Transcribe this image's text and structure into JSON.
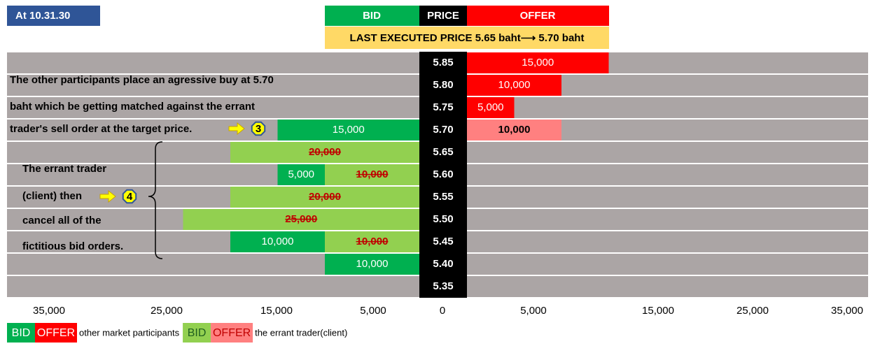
{
  "header": {
    "time": "At 10.31.30",
    "bid": "BID",
    "price": "PRICE",
    "offer": "OFFER",
    "last_price": "LAST EXECUTED PRICE 5.65 baht⟶ 5.70 baht"
  },
  "rows": [
    {
      "price": "5.85",
      "bid": [],
      "offer": [
        {
          "value": 15000,
          "label": "15,000",
          "color": "#ff0000"
        }
      ]
    },
    {
      "price": "5.80",
      "bid": [],
      "offer": [
        {
          "value": 10000,
          "label": "10,000",
          "color": "#ff0000"
        }
      ]
    },
    {
      "price": "5.75",
      "bid": [],
      "offer": [
        {
          "value": 5000,
          "label": "5,000",
          "color": "#ff0000"
        }
      ]
    },
    {
      "price": "5.70",
      "bid": [
        {
          "value": 15000,
          "label": "15,000",
          "color": "#00b050"
        }
      ],
      "offer": [
        {
          "value": 10000,
          "label": "10,000",
          "color": "#ff8080",
          "bold": true
        }
      ]
    },
    {
      "price": "5.65",
      "bid": [
        {
          "value": 20000,
          "label": "20,000",
          "color": "#92d050",
          "struck": true
        }
      ],
      "offer": []
    },
    {
      "price": "5.60",
      "bid": [
        {
          "value": 10000,
          "label": "10,000",
          "color": "#92d050",
          "struck": true
        },
        {
          "value": 5000,
          "label": "5,000",
          "color": "#00b050"
        }
      ],
      "offer": []
    },
    {
      "price": "5.55",
      "bid": [
        {
          "value": 20000,
          "label": "20,000",
          "color": "#92d050",
          "struck": true
        }
      ],
      "offer": []
    },
    {
      "price": "5.50",
      "bid": [
        {
          "value": 25000,
          "label": "25,000",
          "color": "#92d050",
          "struck": true
        }
      ],
      "offer": []
    },
    {
      "price": "5.45",
      "bid": [
        {
          "value": 10000,
          "label": "10,000",
          "color": "#92d050",
          "struck": true
        },
        {
          "value": 10000,
          "label": "10,000",
          "color": "#00b050"
        }
      ],
      "offer": []
    },
    {
      "price": "5.40",
      "bid": [
        {
          "value": 10000,
          "label": "10,000",
          "color": "#00b050"
        }
      ],
      "offer": []
    },
    {
      "price": "5.35",
      "bid": [],
      "offer": []
    }
  ],
  "note_3": {
    "lines": [
      "The other participants place an agressive buy at 5.70",
      "baht which be getting matched against the errant",
      "trader's sell order at the target price."
    ],
    "badge": "3"
  },
  "note_4": {
    "lines": [
      "The errant trader",
      "(client) then",
      "cancel all of the",
      "fictitious bid orders."
    ],
    "badge": "4"
  },
  "axis": [
    "35,000",
    "25,000",
    "15,000",
    "5,000",
    "0",
    "5,000",
    "15,000",
    "25,000",
    "35,000"
  ],
  "legend": [
    {
      "label": "BID",
      "color": "#00b050",
      "text_color": "#ffffff"
    },
    {
      "label": "OFFER",
      "color": "#ff0000",
      "text_color": "#ffffff"
    },
    {
      "label": "other market participants"
    },
    {
      "label": "BID",
      "color": "#92d050",
      "text_color": "#1f5f1f"
    },
    {
      "label": "OFFER",
      "color": "#ff8080",
      "text_color": "#c00000"
    },
    {
      "label": "the errant trader(client)"
    }
  ]
}
